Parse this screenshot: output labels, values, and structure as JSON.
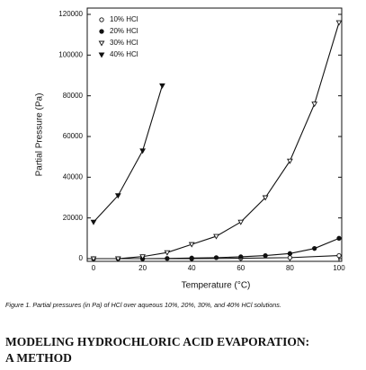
{
  "chart_data": {
    "type": "line",
    "x_label": "Temperature (°C)",
    "y_label": "Partial Pressure (Pa)",
    "xlim": [
      0,
      100
    ],
    "xticks": [
      0,
      20,
      40,
      60,
      80,
      100
    ],
    "ylim": [
      0,
      120000
    ],
    "yticks": [
      0,
      20000,
      40000,
      60000,
      80000,
      100000,
      120000
    ],
    "grid": false,
    "legend": "upper left",
    "series": [
      {
        "name": "10% HCl",
        "color": "#111111",
        "marker": "circle-open",
        "x": [
          0,
          20,
          40,
          60,
          80,
          100
        ],
        "values": [
          0,
          0,
          0,
          200,
          500,
          1500
        ]
      },
      {
        "name": "20% HCl",
        "color": "#111111",
        "marker": "circle-filled",
        "x": [
          0,
          10,
          20,
          30,
          40,
          50,
          60,
          70,
          80,
          90,
          100
        ],
        "values": [
          0,
          0,
          0,
          100,
          300,
          500,
          900,
          1500,
          2500,
          5000,
          10000
        ]
      },
      {
        "name": "30% HCl",
        "color": "#111111",
        "marker": "triangle-open",
        "x": [
          0,
          10,
          20,
          30,
          40,
          50,
          60,
          70,
          80,
          90,
          100
        ],
        "values": [
          0,
          0,
          1000,
          3000,
          7000,
          11000,
          18000,
          30000,
          48000,
          76000,
          116000
        ]
      },
      {
        "name": "40% HCl",
        "color": "#111111",
        "marker": "triangle-filled",
        "x": [
          0,
          10,
          20,
          28
        ],
        "values": [
          18000,
          31000,
          53000,
          85000
        ]
      }
    ]
  },
  "caption": "Figure 1.  Partial pressures (in Pa) of HCl over aqueous 10%, 20%, 30%, and 40% HCl solutions.",
  "heading": [
    "MODELING HYDROCHLORIC ACID EVAPORATION:",
    "A METHOD"
  ]
}
